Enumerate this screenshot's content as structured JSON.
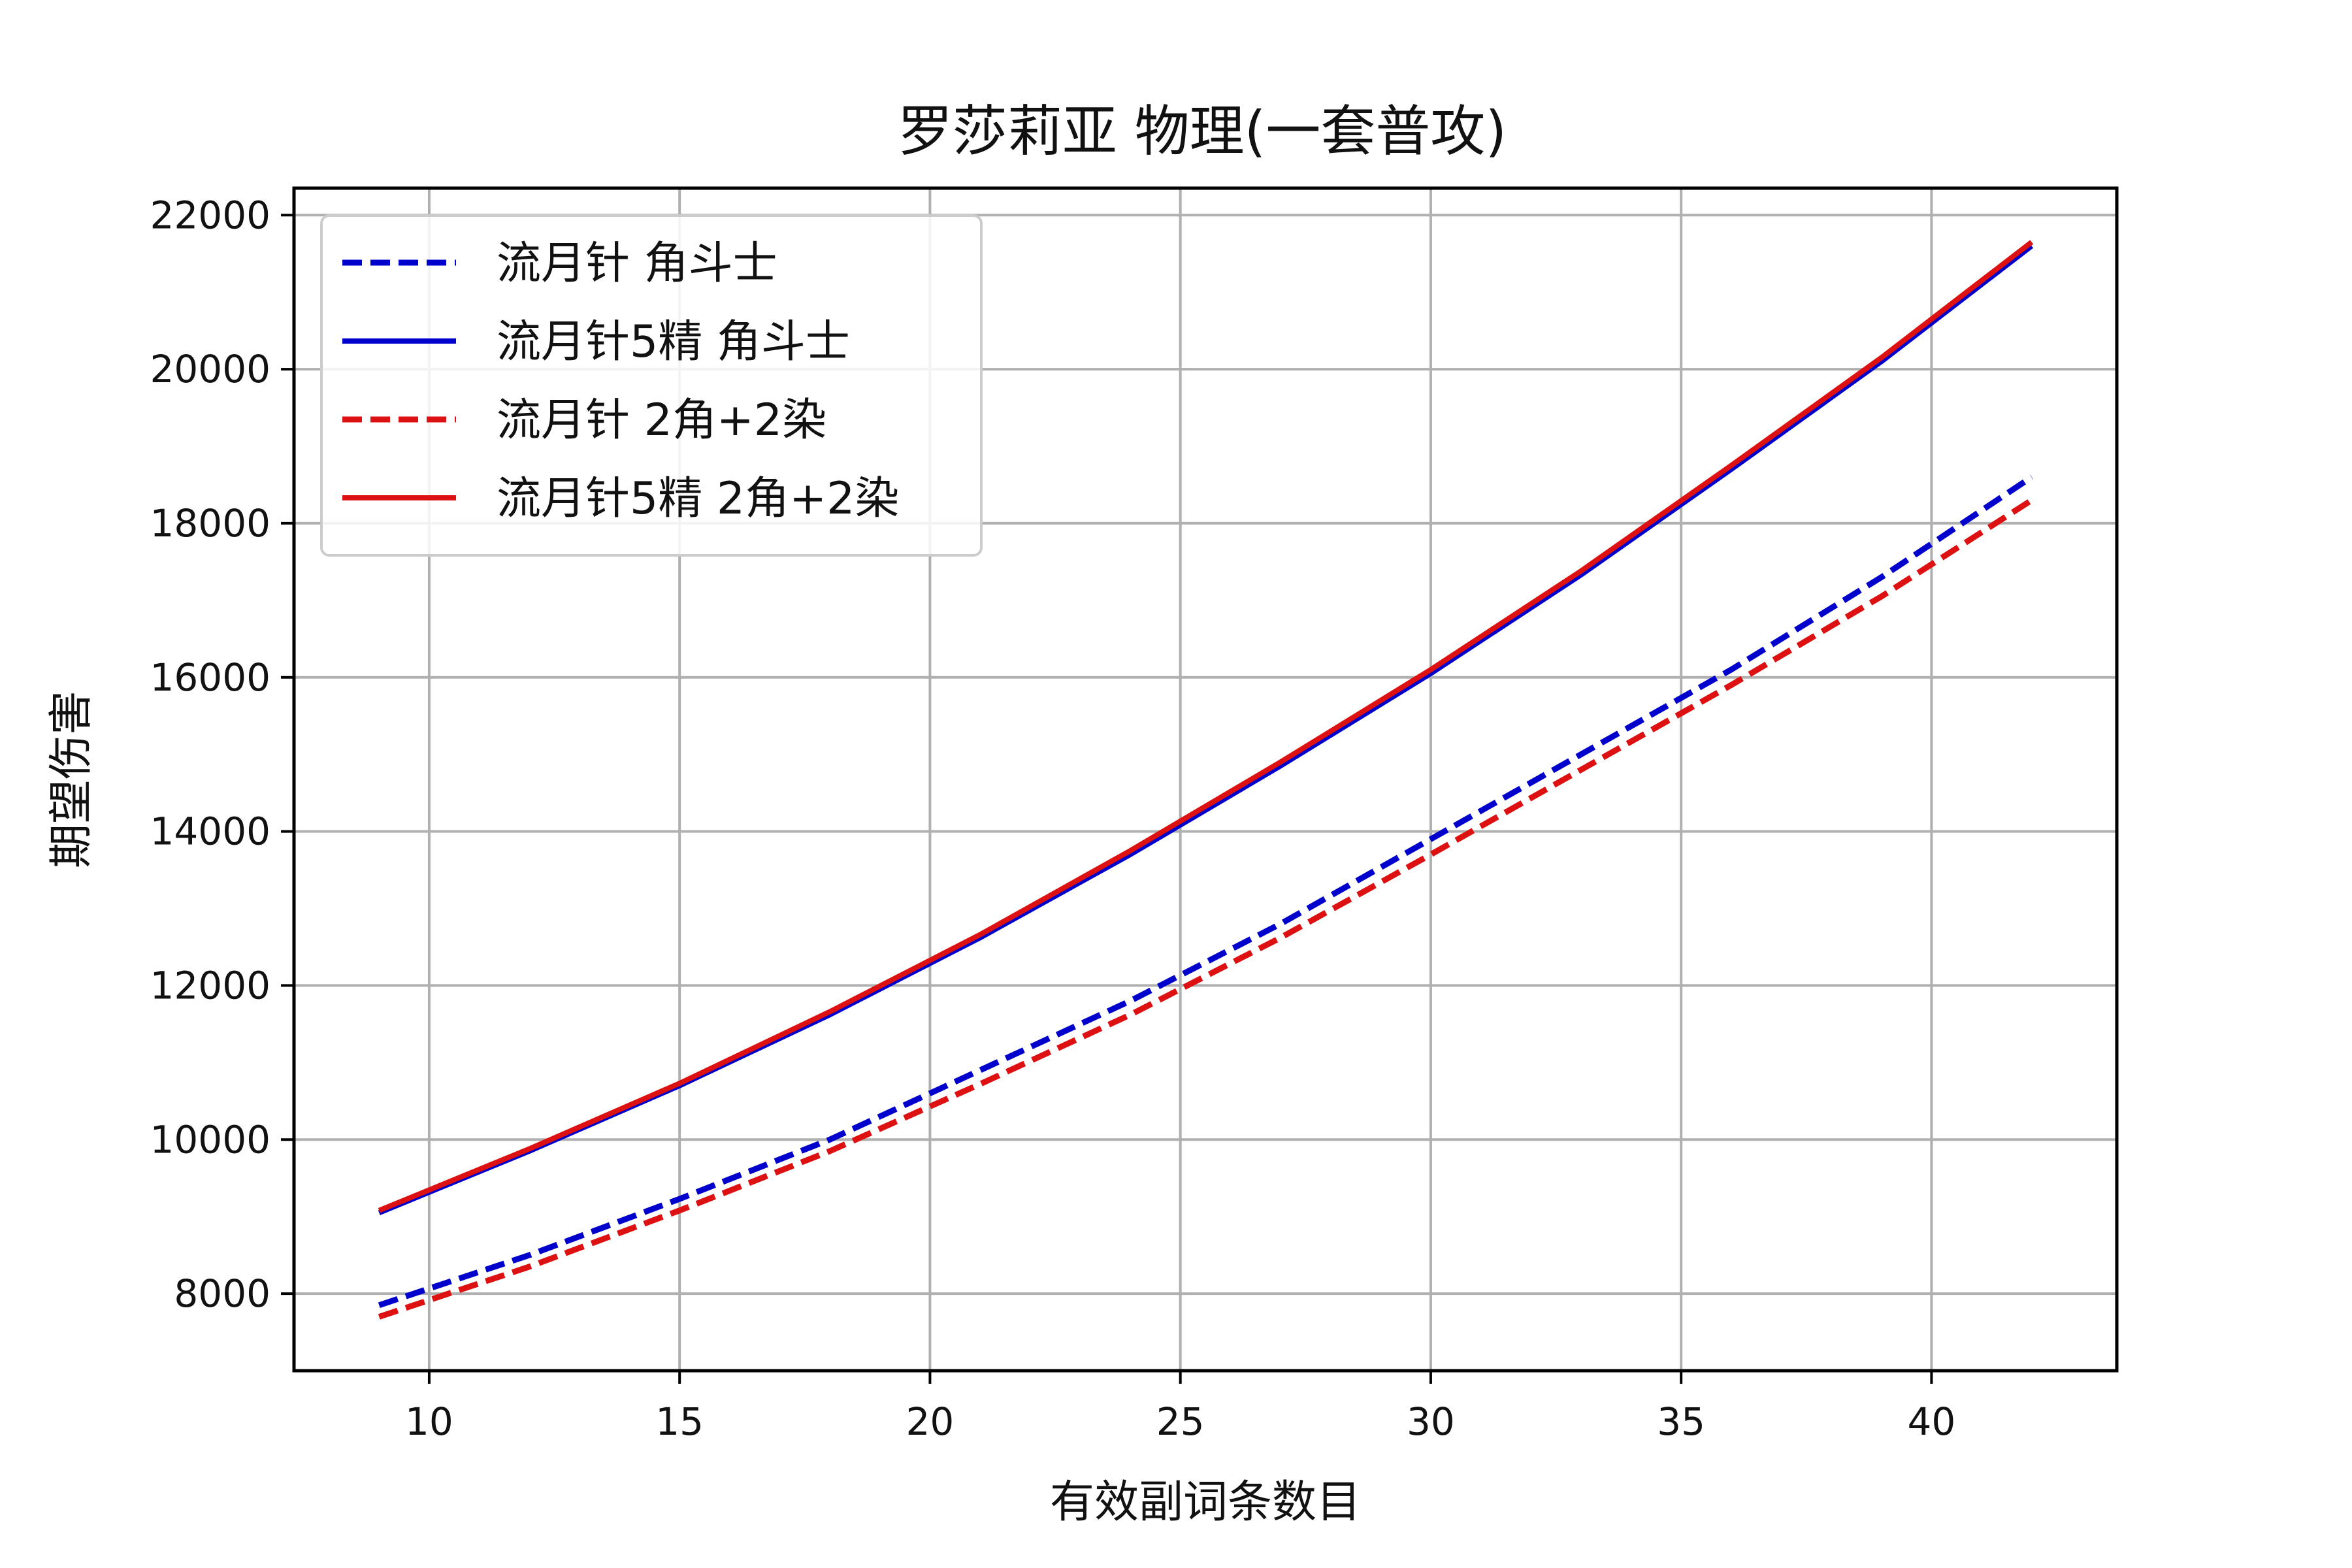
{
  "chart_data": {
    "type": "line",
    "title": "罗莎莉亚 物理(一套普攻)",
    "xlabel": "有效副词条数目",
    "ylabel": "期望伤害",
    "xlim": [
      7.3,
      43.7
    ],
    "ylim": [
      7000,
      22350
    ],
    "x_ticks": [
      10,
      15,
      20,
      25,
      30,
      35,
      40
    ],
    "y_ticks": [
      8000,
      10000,
      12000,
      14000,
      16000,
      18000,
      20000,
      22000
    ],
    "grid": true,
    "legend_position": "top-left",
    "x": [
      9,
      12,
      15,
      18,
      21,
      24,
      27,
      30,
      33,
      36,
      39,
      42
    ],
    "series": [
      {
        "name": "流月针 角斗士",
        "color": "#0000cc",
        "style": "dashed",
        "values": [
          7850,
          8500,
          9230,
          10000,
          10900,
          11800,
          12800,
          13900,
          15000,
          16100,
          17300,
          18600
        ]
      },
      {
        "name": "流月针5精 角斗士",
        "color": "#0000cc",
        "style": "solid",
        "values": [
          9050,
          9850,
          10700,
          11620,
          12620,
          13700,
          14850,
          16050,
          17330,
          18700,
          20100,
          21600
        ]
      },
      {
        "name": "流月针 2角+2染",
        "color": "#dd1111",
        "style": "dashed",
        "values": [
          7700,
          8350,
          9080,
          9850,
          10720,
          11620,
          12620,
          13700,
          14800,
          15900,
          17050,
          18300
        ]
      },
      {
        "name": "流月针5精 2角+2染",
        "color": "#dd1111",
        "style": "solid",
        "values": [
          9080,
          9880,
          10730,
          11660,
          12660,
          13750,
          14900,
          16100,
          17380,
          18750,
          20150,
          21650
        ]
      }
    ]
  }
}
